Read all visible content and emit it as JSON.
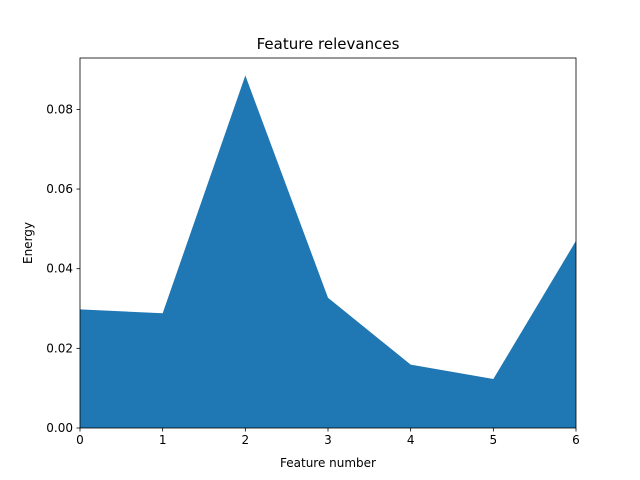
{
  "chart_data": {
    "type": "area",
    "title": "Feature relevances",
    "xlabel": "Feature number",
    "ylabel": "Energy",
    "x": [
      0,
      1,
      2,
      3,
      4,
      5,
      6
    ],
    "series": [
      {
        "values": [
          0.0298,
          0.0288,
          0.0885,
          0.0327,
          0.0159,
          0.0123,
          0.047
        ]
      }
    ],
    "xlim": [
      0,
      6
    ],
    "ylim": [
      0,
      0.0929
    ],
    "xticks": [
      "0",
      "1",
      "2",
      "3",
      "4",
      "5",
      "6"
    ],
    "yticks": [
      "0.00",
      "0.02",
      "0.04",
      "0.06",
      "0.08"
    ],
    "ytick_values": [
      0,
      0.02,
      0.04,
      0.06,
      0.08
    ],
    "grid": false,
    "fill_color": "#1f77b4"
  }
}
